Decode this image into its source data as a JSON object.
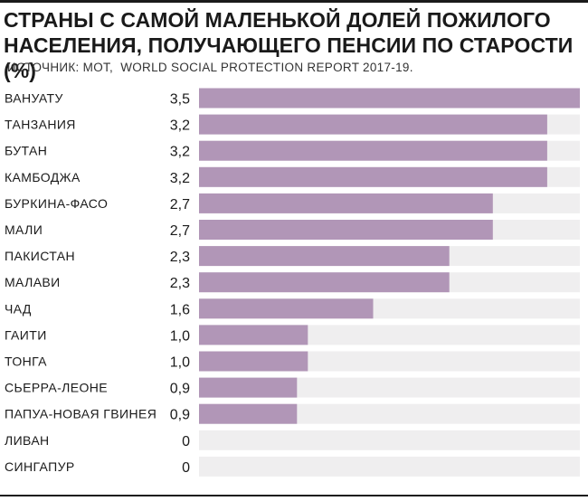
{
  "header": {
    "title": "СТРАНЫ С САМОЙ МАЛЕНЬКОЙ ДОЛЕЙ ПОЖИЛОГО НАСЕЛЕНИЯ, ПОЛУЧАЮЩЕГО ПЕНСИИ ПО СТАРОСТИ (%)",
    "source": "ИСТОЧНИК: МОТ,  WORLD SOCIAL PROTECTION REPORT 2017-19."
  },
  "colors": {
    "bar": "#b196b7",
    "track": "#efeeef",
    "text": "#1a1a1a"
  },
  "chart_data": {
    "type": "bar",
    "orientation": "horizontal",
    "title": "СТРАНЫ С САМОЙ МАЛЕНЬКОЙ ДОЛЕЙ ПОЖИЛОГО НАСЕЛЕНИЯ, ПОЛУЧАЮЩЕГО ПЕНСИИ ПО СТАРОСТИ (%)",
    "categories": [
      "ВАНУАТУ",
      "ТАНЗАНИЯ",
      "БУТАН",
      "КАМБОДЖА",
      "БУРКИНА-ФАСО",
      "МАЛИ",
      "ПАКИСТАН",
      "МАЛАВИ",
      "ЧАД",
      "ГАИТИ",
      "ТОНГА",
      "СЬЕРРА-ЛЕОНЕ",
      "ПАПУА-НОВАЯ ГВИНЕЯ",
      "ЛИВАН",
      "СИНГАПУР"
    ],
    "values": [
      3.5,
      3.2,
      3.2,
      3.2,
      2.7,
      2.7,
      2.3,
      2.3,
      1.6,
      1.0,
      1.0,
      0.9,
      0.9,
      0,
      0
    ],
    "value_labels": [
      "3,5",
      "3,2",
      "3,2",
      "3,2",
      "2,7",
      "2,7",
      "2,3",
      "2,3",
      "1,6",
      "1,0",
      "1,0",
      "0,9",
      "0,9",
      "0",
      "0"
    ],
    "xlim": [
      0,
      3.5
    ],
    "grid": false,
    "legend": "none"
  }
}
